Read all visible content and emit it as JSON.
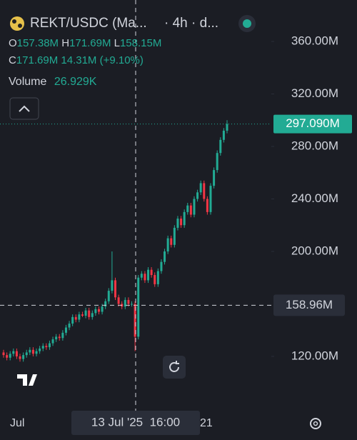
{
  "chart_data": {
    "type": "candlestick",
    "header": {
      "symbol": "REKT/USDC (Ma...",
      "interval": "· 4h · d...",
      "ohlc": [
        {
          "label": "O",
          "value": "157.38M"
        },
        {
          "label": "H",
          "value": "171.69M"
        },
        {
          "label": "L",
          "value": "158.15M"
        },
        {
          "label": "C",
          "value": "171.69M"
        }
      ],
      "change": "14.31M",
      "change_pct": "(+9.10%)",
      "volume_label": "Volume",
      "volume": "26.929K"
    },
    "up_color": "#22ab94",
    "down_color": "#f23645",
    "open": [
      123,
      121,
      119,
      122,
      124,
      120,
      118,
      121,
      123,
      125,
      122,
      124,
      126,
      128,
      127,
      130,
      133,
      135,
      134,
      138,
      142,
      145,
      150,
      148,
      152,
      151,
      155,
      150,
      153,
      156,
      154,
      158,
      162,
      170,
      178,
      165,
      160,
      158,
      163,
      160,
      160,
      135,
      180,
      183,
      178,
      186,
      182,
      175,
      185,
      192,
      200,
      210,
      205,
      218,
      225,
      220,
      230,
      235,
      228,
      240,
      245,
      252,
      240,
      230,
      250,
      262,
      275,
      285,
      292
    ],
    "close": [
      121,
      119,
      122,
      124,
      120,
      118,
      121,
      123,
      125,
      122,
      124,
      126,
      128,
      127,
      130,
      133,
      135,
      134,
      138,
      142,
      145,
      150,
      148,
      152,
      151,
      155,
      150,
      153,
      156,
      154,
      158,
      162,
      170,
      178,
      165,
      160,
      158,
      163,
      160,
      160,
      135,
      180,
      183,
      178,
      186,
      182,
      175,
      185,
      192,
      200,
      210,
      205,
      218,
      225,
      220,
      230,
      235,
      228,
      240,
      245,
      252,
      240,
      230,
      250,
      262,
      275,
      285,
      292,
      297.09
    ],
    "high": [
      125,
      123,
      124,
      126,
      126,
      122,
      123,
      125,
      127,
      127,
      126,
      128,
      130,
      130,
      132,
      135,
      137,
      137,
      140,
      144,
      147,
      152,
      152,
      154,
      154,
      157,
      157,
      155,
      158,
      158,
      160,
      164,
      172,
      200,
      180,
      167,
      162,
      165,
      165,
      162,
      162,
      182,
      185,
      185,
      188,
      188,
      184,
      187,
      194,
      202,
      212,
      212,
      220,
      227,
      227,
      232,
      237,
      237,
      242,
      247,
      254,
      254,
      242,
      252,
      264,
      277,
      287,
      294,
      300
    ],
    "low": [
      119,
      117,
      117,
      120,
      118,
      116,
      116,
      119,
      121,
      120,
      120,
      122,
      124,
      125,
      125,
      128,
      131,
      132,
      132,
      136,
      140,
      143,
      146,
      146,
      150,
      149,
      148,
      148,
      151,
      152,
      152,
      156,
      160,
      168,
      163,
      158,
      156,
      156,
      158,
      158,
      124,
      133,
      178,
      176,
      176,
      180,
      173,
      173,
      183,
      190,
      198,
      203,
      203,
      216,
      218,
      218,
      228,
      226,
      226,
      238,
      243,
      238,
      228,
      228,
      248,
      260,
      273,
      283,
      290
    ],
    "ylim": [
      78.6,
      391.6
    ],
    "yticks": [
      {
        "value": 360,
        "label": "360.00M"
      },
      {
        "value": 320,
        "label": "320.00M"
      },
      {
        "value": 280,
        "label": "280.00M"
      },
      {
        "value": 240,
        "label": "240.00M"
      },
      {
        "value": 200,
        "label": "200.00M"
      },
      {
        "value": 120,
        "label": "120.00M"
      }
    ],
    "last_price": {
      "value": 297.09,
      "label": "297.090M"
    },
    "crosshair": {
      "value": 158.96,
      "label": "158.96M",
      "x_label": "13 Jul '25  16:00"
    },
    "x_labels": [
      "Jul",
      "21"
    ]
  }
}
